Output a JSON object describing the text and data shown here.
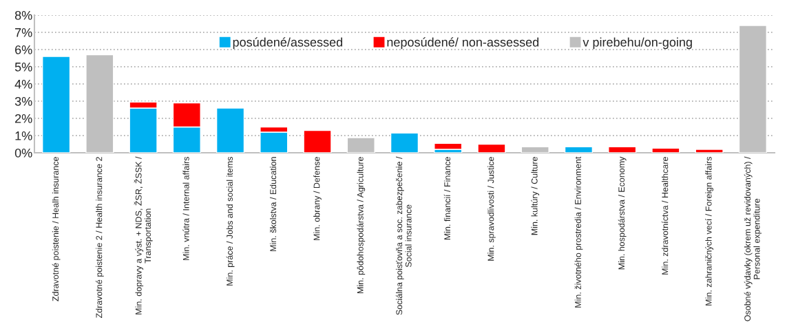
{
  "chart_data": {
    "type": "bar",
    "stacked": true,
    "categories": [
      "Zdravotné poistenie / Healh insurance",
      "Zdravotné poistenie 2 / Health insurance 2",
      "Min. dopravy a výst. + NDS, ŽSR, ŽSSK /\nTransportation",
      "Min. vnútra / Internal affairs",
      "Min. práce / Jobs and social items",
      "Min. školstva / Education",
      "Min. obrany / Defense",
      "Min. pôdohospodárstva / Agriculture",
      "Sociálna poisťovňa a soc. zabezpečenie /\nSocial insurance",
      "Min. financií / Finance",
      "Min. spravodlivosti / Justice",
      "Min. kultúry / Culture",
      "Min. životného prostredia / Environment",
      "Min. hospodárstva / Economy",
      "Min. zdravotníctva / Healthcare",
      "Min. zahraničných vecí / Foreign affairs",
      "Osobné výdavky (okrem už revidovaných) /\nPersonal expenditure"
    ],
    "series": [
      {
        "name": "posúdené/assessed",
        "color": "#00b0f0",
        "values": [
          5.6,
          null,
          2.6,
          1.5,
          2.6,
          1.2,
          null,
          null,
          1.15,
          0.2,
          null,
          null,
          0.35,
          null,
          null,
          null,
          null
        ]
      },
      {
        "name": "neposúdené/ non-assessed",
        "color": "#ff0000",
        "values": [
          null,
          null,
          0.35,
          1.4,
          null,
          0.3,
          1.3,
          null,
          null,
          0.35,
          0.5,
          null,
          null,
          0.35,
          0.27,
          0.2,
          null
        ]
      },
      {
        "name": "v pirebehu/on-going",
        "color": "#bfbfbf",
        "values": [
          null,
          5.7,
          null,
          null,
          null,
          null,
          null,
          0.88,
          null,
          null,
          null,
          0.35,
          null,
          null,
          null,
          null,
          7.4
        ]
      }
    ],
    "ylim": [
      0,
      8
    ],
    "yticks": [
      {
        "value": 0,
        "label": "0%"
      },
      {
        "value": 1,
        "label": "1%"
      },
      {
        "value": 2,
        "label": "2%"
      },
      {
        "value": 3,
        "label": "3%"
      },
      {
        "value": 4,
        "label": "4%"
      },
      {
        "value": 5,
        "label": "5%"
      },
      {
        "value": 6,
        "label": "6%"
      },
      {
        "value": 7,
        "label": "7%"
      },
      {
        "value": 8,
        "label": "8%"
      }
    ],
    "grid": "y",
    "legend": "top"
  }
}
